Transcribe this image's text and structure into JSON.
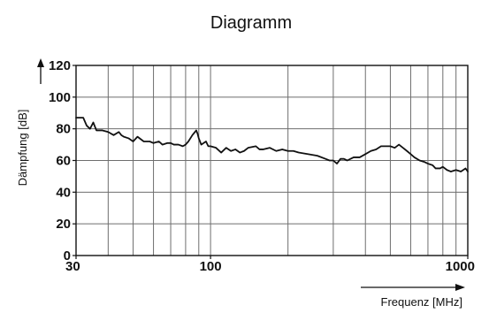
{
  "chart_data": {
    "type": "line",
    "title": "Diagramm",
    "ylabel": "Dämpfung [dB]",
    "xlabel": "Frequenz [MHz]",
    "xscale": "log",
    "xlim": [
      30,
      1000
    ],
    "ylim": [
      0,
      120
    ],
    "grid": true,
    "x_ticks": [
      30,
      100,
      1000
    ],
    "x_tick_labels": [
      "30",
      "100",
      "1000"
    ],
    "x_minor_gridlines": [
      40,
      50,
      60,
      70,
      80,
      90,
      200,
      300,
      400,
      500,
      600,
      700,
      800,
      900
    ],
    "y_ticks": [
      0,
      20,
      40,
      60,
      80,
      100,
      120
    ],
    "y_tick_labels": [
      "0",
      "20",
      "40",
      "60",
      "80",
      "100",
      "120"
    ],
    "line_color": "#111111",
    "grid_color": "#6e6e6e",
    "series": [
      {
        "x": [
          30,
          32,
          33,
          34,
          35,
          36,
          38,
          40,
          42,
          44,
          45,
          46,
          48,
          50,
          52,
          55,
          58,
          60,
          63,
          65,
          68,
          70,
          72,
          75,
          78,
          80,
          82,
          85,
          87,
          88,
          89,
          90,
          92,
          94,
          96,
          98,
          100,
          105,
          110,
          115,
          120,
          125,
          130,
          135,
          140,
          150,
          155,
          160,
          170,
          180,
          190,
          200,
          210,
          220,
          240,
          260,
          280,
          290,
          300,
          310,
          320,
          330,
          340,
          360,
          380,
          400,
          420,
          440,
          460,
          480,
          500,
          520,
          540,
          560,
          580,
          600,
          620,
          650,
          680,
          700,
          730,
          750,
          780,
          800,
          830,
          860,
          900,
          940,
          960,
          980,
          1000
        ],
        "y": [
          87,
          87,
          82,
          80,
          84,
          79,
          79,
          78,
          76,
          78,
          76,
          75,
          74,
          72,
          75,
          72,
          72,
          71,
          72,
          70,
          71,
          71,
          70,
          70,
          69,
          70,
          72,
          76,
          78,
          79,
          77,
          74,
          70,
          71,
          72,
          69,
          69,
          68,
          65,
          68,
          66,
          67,
          65,
          66,
          68,
          69,
          67,
          67,
          68,
          66,
          67,
          66,
          66,
          65,
          64,
          63,
          61,
          60,
          60,
          58,
          61,
          61,
          60,
          62,
          62,
          64,
          66,
          67,
          69,
          69,
          69,
          68,
          70,
          68,
          66,
          64,
          62,
          60,
          59,
          58,
          57,
          55,
          55,
          56,
          54,
          53,
          54,
          53,
          54,
          55,
          53
        ]
      }
    ]
  }
}
